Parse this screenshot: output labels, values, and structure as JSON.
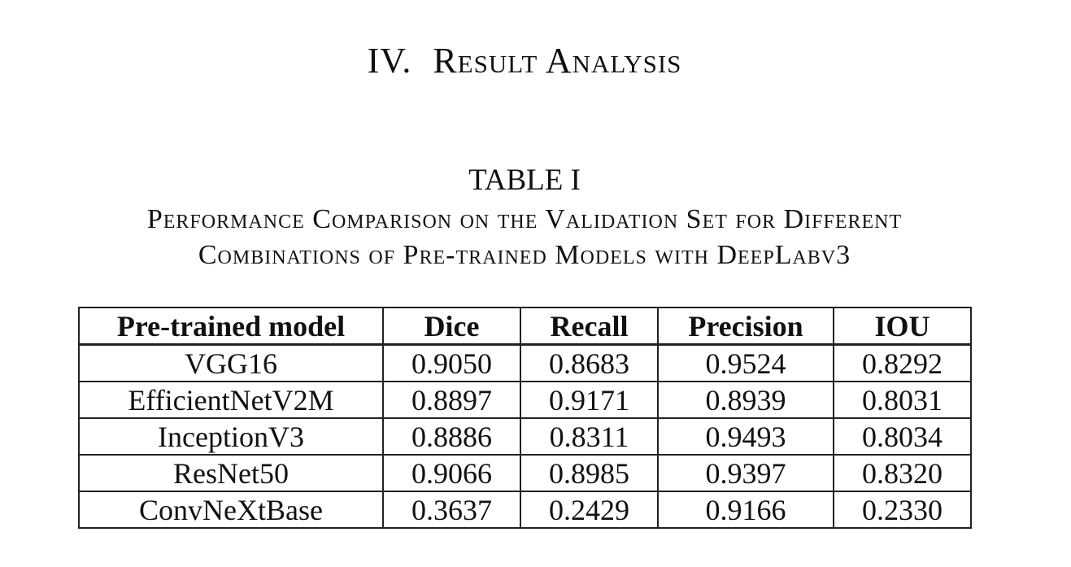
{
  "section": {
    "number": "IV.",
    "title": "Result Analysis"
  },
  "table": {
    "label": "TABLE I",
    "caption_line1": "Performance Comparison on the Validation Set for Different",
    "caption_line2": "Combinations of Pre-trained Models with DeepLabv3",
    "headers": [
      "Pre-trained model",
      "Dice",
      "Recall",
      "Precision",
      "IOU"
    ],
    "rows": [
      [
        "VGG16",
        "0.9050",
        "0.8683",
        "0.9524",
        "0.8292"
      ],
      [
        "EfficientNetV2M",
        "0.8897",
        "0.9171",
        "0.8939",
        "0.8031"
      ],
      [
        "InceptionV3",
        "0.8886",
        "0.8311",
        "0.9493",
        "0.8034"
      ],
      [
        "ResNet50",
        "0.9066",
        "0.8985",
        "0.9397",
        "0.8320"
      ],
      [
        "ConvNeXtBase",
        "0.3637",
        "0.2429",
        "0.9166",
        "0.2330"
      ]
    ]
  }
}
